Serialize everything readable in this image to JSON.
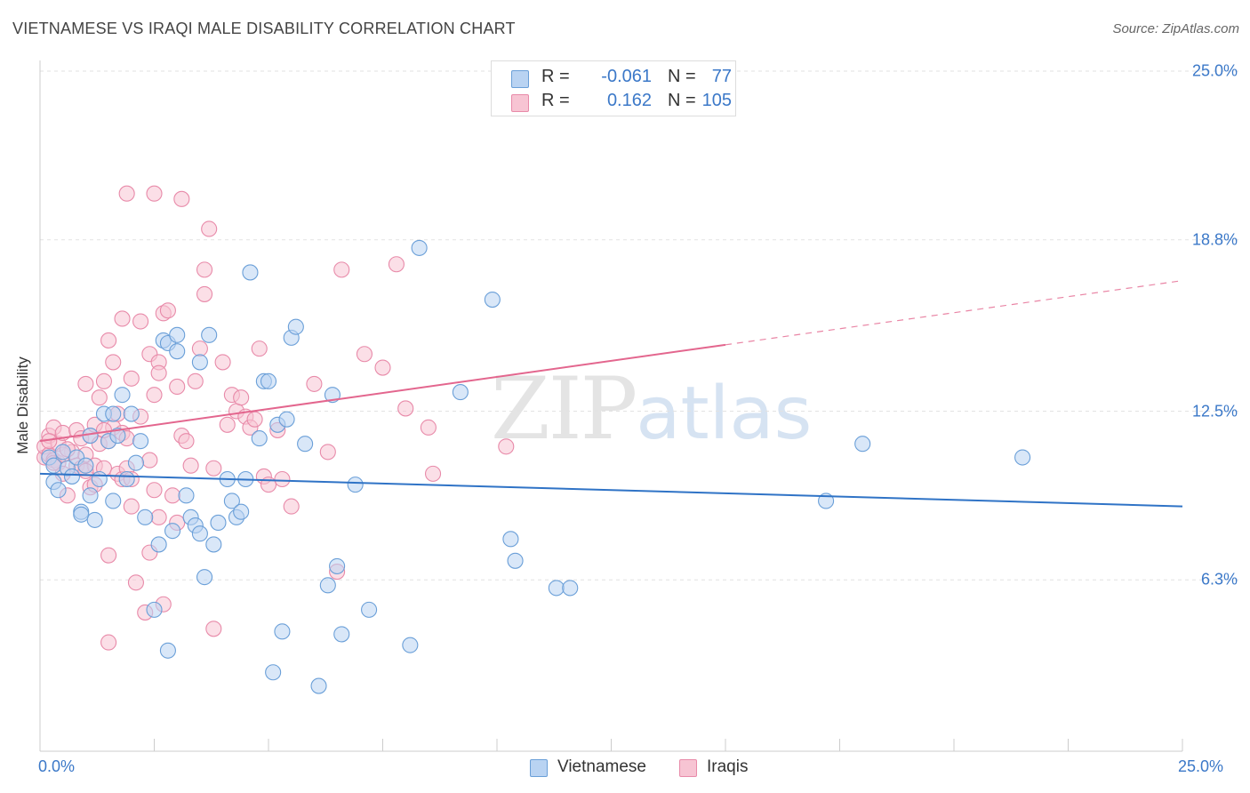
{
  "title": "VIETNAMESE VS IRAQI MALE DISABILITY CORRELATION CHART",
  "source": "Source: ZipAtlas.com",
  "watermark": {
    "zip": "ZIP",
    "atlas": "atlas"
  },
  "colors": {
    "vietnamese_fill": "#b9d3f2",
    "vietnamese_stroke": "#6a9fd8",
    "vietnamese_line": "#2f73c6",
    "iraqis_fill": "#f7c4d3",
    "iraqis_stroke": "#e88aa9",
    "iraqis_line": "#e3668e",
    "tick_text": "#3b78c8",
    "grid": "#e2e2e2"
  },
  "legend": {
    "rows": [
      {
        "r_label": "R =",
        "r_value": "-0.061",
        "n_label": "N =",
        "n_value": "77"
      },
      {
        "r_label": "R =",
        "r_value": "0.162",
        "n_label": "N =",
        "n_value": "105"
      }
    ]
  },
  "chart_data": {
    "type": "scatter",
    "title": "VIETNAMESE VS IRAQI MALE DISABILITY CORRELATION CHART",
    "xlabel": "",
    "ylabel": "Male Disability",
    "xlim": [
      0,
      25
    ],
    "ylim": [
      0,
      25
    ],
    "x_tick_labels": [
      "0.0%",
      "25.0%"
    ],
    "y_ticks": [
      6.3,
      12.5,
      18.8,
      25.0
    ],
    "y_tick_labels": [
      "6.3%",
      "12.5%",
      "18.8%",
      "25.0%"
    ],
    "grid": true,
    "legend_position": "top-center",
    "series": [
      {
        "name": "Vietnamese",
        "r": -0.061,
        "n": 77,
        "trend": {
          "x": [
            0,
            25
          ],
          "y": [
            10.2,
            9.0
          ],
          "dashed_from": null
        },
        "points": [
          [
            0.2,
            10.8
          ],
          [
            0.3,
            10.5
          ],
          [
            0.3,
            9.9
          ],
          [
            0.4,
            9.6
          ],
          [
            0.5,
            11.0
          ],
          [
            0.6,
            10.4
          ],
          [
            0.7,
            10.1
          ],
          [
            0.8,
            10.8
          ],
          [
            0.9,
            8.8
          ],
          [
            0.9,
            8.7
          ],
          [
            1.0,
            10.5
          ],
          [
            1.1,
            11.6
          ],
          [
            1.1,
            9.4
          ],
          [
            1.2,
            8.5
          ],
          [
            1.3,
            10.0
          ],
          [
            1.4,
            12.4
          ],
          [
            1.5,
            11.4
          ],
          [
            1.6,
            9.2
          ],
          [
            1.7,
            11.6
          ],
          [
            1.8,
            13.1
          ],
          [
            1.9,
            10.0
          ],
          [
            2.0,
            12.4
          ],
          [
            2.1,
            10.6
          ],
          [
            2.2,
            11.4
          ],
          [
            2.3,
            8.6
          ],
          [
            2.6,
            7.6
          ],
          [
            2.7,
            15.1
          ],
          [
            2.8,
            15.0
          ],
          [
            2.9,
            8.1
          ],
          [
            3.0,
            14.7
          ],
          [
            3.0,
            15.3
          ],
          [
            3.2,
            9.4
          ],
          [
            3.3,
            8.6
          ],
          [
            3.4,
            8.3
          ],
          [
            3.5,
            14.3
          ],
          [
            3.5,
            8.0
          ],
          [
            3.6,
            6.4
          ],
          [
            3.7,
            15.3
          ],
          [
            3.8,
            7.6
          ],
          [
            3.9,
            8.4
          ],
          [
            4.1,
            10.0
          ],
          [
            4.2,
            9.2
          ],
          [
            4.3,
            8.6
          ],
          [
            4.4,
            8.8
          ],
          [
            4.5,
            10.0
          ],
          [
            4.6,
            17.6
          ],
          [
            4.8,
            11.5
          ],
          [
            4.9,
            13.6
          ],
          [
            5.0,
            13.6
          ],
          [
            5.1,
            2.9
          ],
          [
            5.2,
            12.0
          ],
          [
            5.3,
            4.4
          ],
          [
            5.4,
            12.2
          ],
          [
            5.5,
            15.2
          ],
          [
            5.6,
            15.6
          ],
          [
            5.8,
            11.3
          ],
          [
            6.1,
            2.4
          ],
          [
            6.3,
            6.1
          ],
          [
            6.4,
            13.1
          ],
          [
            6.5,
            6.8
          ],
          [
            6.6,
            4.3
          ],
          [
            6.9,
            9.8
          ],
          [
            7.2,
            5.2
          ],
          [
            8.1,
            3.9
          ],
          [
            8.3,
            18.5
          ],
          [
            9.2,
            13.2
          ],
          [
            9.9,
            16.6
          ],
          [
            10.3,
            7.8
          ],
          [
            10.4,
            7.0
          ],
          [
            11.3,
            6.0
          ],
          [
            11.6,
            6.0
          ],
          [
            17.2,
            9.2
          ],
          [
            18.0,
            11.3
          ],
          [
            21.5,
            10.8
          ],
          [
            2.8,
            3.7
          ],
          [
            2.5,
            5.2
          ],
          [
            1.6,
            12.4
          ]
        ]
      },
      {
        "name": "Iraqis",
        "r": 0.162,
        "n": 105,
        "trend": {
          "x": [
            0,
            25
          ],
          "y": [
            11.4,
            17.3
          ],
          "dashed_from": 15
        },
        "points": [
          [
            0.1,
            10.8
          ],
          [
            0.1,
            11.2
          ],
          [
            0.2,
            10.9
          ],
          [
            0.2,
            11.6
          ],
          [
            0.3,
            10.7
          ],
          [
            0.3,
            11.9
          ],
          [
            0.4,
            11.3
          ],
          [
            0.4,
            10.6
          ],
          [
            0.5,
            11.7
          ],
          [
            0.5,
            10.2
          ],
          [
            0.6,
            9.4
          ],
          [
            0.7,
            11.0
          ],
          [
            0.8,
            10.5
          ],
          [
            0.8,
            11.8
          ],
          [
            0.9,
            10.4
          ],
          [
            0.9,
            11.5
          ],
          [
            1.0,
            13.5
          ],
          [
            1.0,
            10.9
          ],
          [
            1.1,
            9.7
          ],
          [
            1.1,
            11.6
          ],
          [
            1.2,
            12.0
          ],
          [
            1.2,
            10.5
          ],
          [
            1.3,
            13.0
          ],
          [
            1.3,
            11.3
          ],
          [
            1.4,
            13.6
          ],
          [
            1.4,
            10.4
          ],
          [
            1.5,
            15.1
          ],
          [
            1.5,
            7.2
          ],
          [
            1.5,
            11.4
          ],
          [
            1.6,
            14.3
          ],
          [
            1.6,
            11.9
          ],
          [
            1.7,
            10.2
          ],
          [
            1.7,
            12.4
          ],
          [
            1.8,
            10.0
          ],
          [
            1.8,
            11.7
          ],
          [
            1.8,
            15.9
          ],
          [
            1.9,
            10.4
          ],
          [
            1.9,
            11.5
          ],
          [
            2.0,
            13.7
          ],
          [
            2.0,
            9.0
          ],
          [
            2.1,
            6.2
          ],
          [
            2.2,
            12.3
          ],
          [
            2.2,
            15.8
          ],
          [
            2.3,
            5.1
          ],
          [
            2.4,
            7.3
          ],
          [
            2.4,
            14.6
          ],
          [
            2.5,
            13.1
          ],
          [
            2.5,
            9.6
          ],
          [
            2.6,
            8.6
          ],
          [
            2.6,
            14.3
          ],
          [
            2.7,
            16.1
          ],
          [
            2.7,
            5.4
          ],
          [
            2.8,
            16.2
          ],
          [
            2.9,
            9.4
          ],
          [
            3.0,
            13.4
          ],
          [
            3.1,
            11.6
          ],
          [
            3.2,
            11.4
          ],
          [
            3.3,
            10.5
          ],
          [
            3.4,
            13.6
          ],
          [
            3.5,
            14.8
          ],
          [
            3.6,
            17.7
          ],
          [
            3.6,
            16.8
          ],
          [
            3.7,
            19.2
          ],
          [
            3.8,
            4.5
          ],
          [
            4.0,
            14.3
          ],
          [
            4.1,
            12.0
          ],
          [
            4.2,
            13.1
          ],
          [
            4.3,
            12.5
          ],
          [
            4.5,
            12.3
          ],
          [
            4.6,
            11.9
          ],
          [
            4.8,
            14.8
          ],
          [
            4.9,
            10.1
          ],
          [
            5.0,
            9.8
          ],
          [
            5.2,
            11.8
          ],
          [
            5.5,
            9.0
          ],
          [
            6.0,
            13.5
          ],
          [
            6.3,
            11.0
          ],
          [
            6.5,
            6.6
          ],
          [
            6.6,
            17.7
          ],
          [
            7.1,
            14.6
          ],
          [
            7.5,
            14.1
          ],
          [
            7.8,
            17.9
          ],
          [
            8.0,
            12.6
          ],
          [
            8.5,
            11.9
          ],
          [
            8.6,
            10.2
          ],
          [
            10.2,
            11.2
          ],
          [
            1.9,
            20.5
          ],
          [
            2.5,
            20.5
          ],
          [
            3.1,
            20.3
          ],
          [
            1.5,
            4.0
          ],
          [
            2.6,
            13.9
          ],
          [
            0.3,
            10.6
          ],
          [
            0.5,
            10.9
          ],
          [
            0.6,
            11.1
          ],
          [
            1.0,
            10.3
          ],
          [
            1.2,
            9.8
          ],
          [
            1.4,
            11.8
          ],
          [
            2.0,
            10.0
          ],
          [
            2.4,
            10.7
          ],
          [
            3.0,
            8.4
          ],
          [
            3.8,
            10.4
          ],
          [
            4.4,
            13.0
          ],
          [
            4.7,
            12.2
          ],
          [
            5.3,
            10.0
          ],
          [
            0.2,
            11.4
          ]
        ]
      }
    ]
  },
  "bottom_legend": [
    {
      "label": "Vietnamese"
    },
    {
      "label": "Iraqis"
    }
  ]
}
